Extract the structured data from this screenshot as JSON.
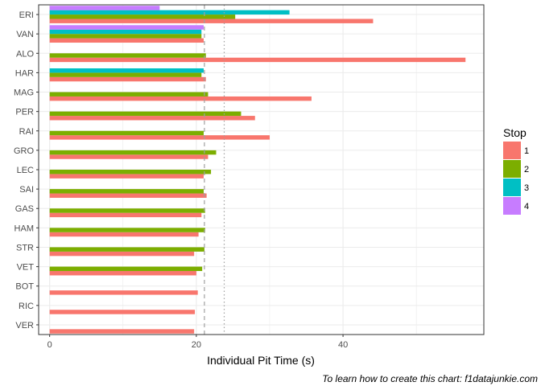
{
  "chart_data": {
    "type": "bar",
    "orientation": "horizontal",
    "xlabel": "Individual Pit Time (s)",
    "ylabel": "",
    "xlim": [
      -1.5,
      59.2
    ],
    "xticks": [
      0,
      20,
      40
    ],
    "grid": true,
    "legend_position": "right",
    "legend_title": "Stop",
    "caption": "To learn how to create this chart: f1datajunkie.com",
    "reference_lines": [
      {
        "style": "dashed",
        "x": 21.1
      },
      {
        "style": "dotted",
        "x": 23.8
      }
    ],
    "categories": [
      "ERI",
      "VAN",
      "ALO",
      "HAR",
      "MAG",
      "PER",
      "RAI",
      "GRO",
      "LEC",
      "SAI",
      "GAS",
      "HAM",
      "STR",
      "VET",
      "BOT",
      "RIC",
      "VER"
    ],
    "series": [
      {
        "name": "1",
        "color": "#F8766D",
        "values": [
          44.1,
          21.0,
          56.7,
          21.3,
          35.7,
          28.0,
          30.0,
          21.6,
          21.0,
          21.4,
          20.7,
          20.3,
          19.7,
          20.0,
          20.2,
          19.8,
          19.7
        ]
      },
      {
        "name": "2",
        "color": "#7CAE00",
        "values": [
          25.3,
          20.7,
          21.3,
          20.7,
          21.6,
          26.1,
          21.0,
          22.7,
          22.0,
          21.0,
          21.2,
          21.2,
          21.1,
          20.8,
          null,
          null,
          null
        ]
      },
      {
        "name": "3",
        "color": "#00BFC4",
        "values": [
          32.7,
          20.7,
          null,
          21.0,
          null,
          null,
          null,
          null,
          null,
          null,
          null,
          null,
          null,
          null,
          null,
          null,
          null
        ]
      },
      {
        "name": "4",
        "color": "#C77CFF",
        "values": [
          15.0,
          21.0,
          null,
          null,
          null,
          null,
          null,
          null,
          null,
          null,
          null,
          null,
          null,
          null,
          null,
          null,
          null
        ]
      }
    ]
  }
}
